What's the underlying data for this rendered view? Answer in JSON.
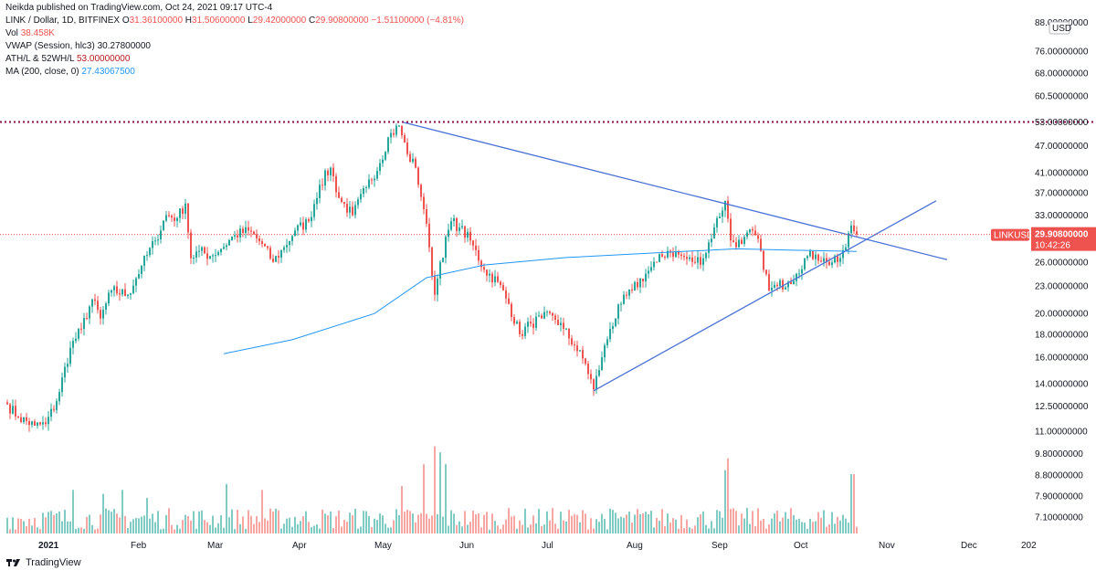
{
  "header": {
    "publisher_line": "Neikda published on TradingView.com, Oct 24, 2021 09:17 UTC-4"
  },
  "legend": {
    "symbol": "LINK / Dollar, 1D, BITFINEX",
    "ohlc": {
      "o_label": "O",
      "o": "31.36100000",
      "h_label": "H",
      "h": "31.50600000",
      "l_label": "L",
      "l": "29.42000000",
      "c_label": "C",
      "c": "29.90800000",
      "change": "−1.51100000 (−4.81%)"
    },
    "vol_label": "Vol",
    "vol": "38.458K",
    "vwap_label": "VWAP (Session, hlc3)",
    "vwap": "30.27800000",
    "ath_label": "ATH/L & 52WH/L",
    "ath": "53.00000000",
    "ma_label": "MA (200, close, 0)",
    "ma": "27.43067500"
  },
  "price_axis": {
    "currency": "USD",
    "ticks": [
      "88.00000000",
      "76.00000000",
      "68.00000000",
      "60.50000000",
      "53.00000000",
      "47.00000000",
      "41.00000000",
      "37.00000000",
      "33.00000000",
      "29.90800000",
      "26.00000000",
      "23.00000000",
      "20.00000000",
      "18.00000000",
      "16.00000000",
      "14.00000000",
      "12.50000000",
      "11.00000000",
      "9.80000000",
      "8.80000000",
      "7.90000000",
      "7.10000000"
    ],
    "last_price_label": "29.90800000",
    "countdown": "10:42:26",
    "symbol_badge": "LINKUSD",
    "ath_line_price": "53.00000000"
  },
  "time_axis": {
    "labels": [
      "2021",
      "Feb",
      "Mar",
      "Apr",
      "May",
      "Jun",
      "Jul",
      "Aug",
      "Sep",
      "Oct",
      "Nov",
      "Dec",
      "202"
    ]
  },
  "footer": {
    "brand": "TradingView"
  },
  "colors": {
    "up": "#26a69a",
    "down": "#ef5350",
    "vol_up": "#80cbc4",
    "vol_down": "#f7a6a4",
    "ma": "#2196f3",
    "trendline": "#4a72d6",
    "ath_line": "#880e4f",
    "last_price_bg": "#ef5350",
    "badge_bg": "#ef5350"
  },
  "chart_data": {
    "type": "candlestick",
    "title": "LINK / Dollar, 1D, BITFINEX",
    "ylabel": "USD",
    "log_scale": true,
    "ylim": [
      6.5,
      95
    ],
    "x_start": "2020-12-18",
    "x_end": "2021-10-24",
    "close_anchors": [
      [
        "2020-12-18",
        12.6
      ],
      [
        "2020-12-22",
        11.8
      ],
      [
        "2020-12-28",
        11.3
      ],
      [
        "2021-01-01",
        11.4
      ],
      [
        "2021-01-05",
        12.8
      ],
      [
        "2021-01-10",
        16.8
      ],
      [
        "2021-01-14",
        18.5
      ],
      [
        "2021-01-18",
        21.5
      ],
      [
        "2021-01-21",
        19.5
      ],
      [
        "2021-01-25",
        22.5
      ],
      [
        "2021-01-31",
        22.0
      ],
      [
        "2021-02-05",
        25.5
      ],
      [
        "2021-02-10",
        29.0
      ],
      [
        "2021-02-14",
        33.0
      ],
      [
        "2021-02-18",
        32.5
      ],
      [
        "2021-02-21",
        35.0
      ],
      [
        "2021-02-23",
        26.5
      ],
      [
        "2021-02-26",
        27.5
      ],
      [
        "2021-03-02",
        26.8
      ],
      [
        "2021-03-06",
        27.8
      ],
      [
        "2021-03-11",
        29.8
      ],
      [
        "2021-03-16",
        30.5
      ],
      [
        "2021-03-21",
        28.5
      ],
      [
        "2021-03-25",
        26.0
      ],
      [
        "2021-03-29",
        28.0
      ],
      [
        "2021-04-02",
        30.5
      ],
      [
        "2021-04-07",
        32.0
      ],
      [
        "2021-04-11",
        38.5
      ],
      [
        "2021-04-15",
        42.0
      ],
      [
        "2021-04-18",
        36.0
      ],
      [
        "2021-04-23",
        33.0
      ],
      [
        "2021-04-28",
        38.0
      ],
      [
        "2021-05-03",
        43.0
      ],
      [
        "2021-05-06",
        49.0
      ],
      [
        "2021-05-10",
        52.0
      ],
      [
        "2021-05-13",
        45.0
      ],
      [
        "2021-05-16",
        42.0
      ],
      [
        "2021-05-19",
        34.0
      ],
      [
        "2021-05-21",
        28.0
      ],
      [
        "2021-05-23",
        22.0
      ],
      [
        "2021-05-25",
        26.0
      ],
      [
        "2021-05-29",
        32.0
      ],
      [
        "2021-06-01",
        31.0
      ],
      [
        "2021-06-05",
        29.0
      ],
      [
        "2021-06-10",
        25.0
      ],
      [
        "2021-06-15",
        23.5
      ],
      [
        "2021-06-19",
        21.0
      ],
      [
        "2021-06-23",
        18.0
      ],
      [
        "2021-06-27",
        19.0
      ],
      [
        "2021-07-01",
        19.5
      ],
      [
        "2021-07-05",
        19.8
      ],
      [
        "2021-07-09",
        18.5
      ],
      [
        "2021-07-13",
        17.0
      ],
      [
        "2021-07-17",
        15.5
      ],
      [
        "2021-07-20",
        13.6
      ],
      [
        "2021-07-23",
        16.0
      ],
      [
        "2021-07-26",
        18.5
      ],
      [
        "2021-07-30",
        21.0
      ],
      [
        "2021-08-03",
        22.5
      ],
      [
        "2021-08-08",
        24.5
      ],
      [
        "2021-08-12",
        26.0
      ],
      [
        "2021-08-16",
        27.5
      ],
      [
        "2021-08-20",
        27.0
      ],
      [
        "2021-08-25",
        26.0
      ],
      [
        "2021-08-29",
        26.5
      ],
      [
        "2021-09-02",
        31.0
      ],
      [
        "2021-09-06",
        35.5
      ],
      [
        "2021-09-08",
        29.0
      ],
      [
        "2021-09-12",
        28.5
      ],
      [
        "2021-09-16",
        30.5
      ],
      [
        "2021-09-19",
        27.5
      ],
      [
        "2021-09-22",
        22.5
      ],
      [
        "2021-09-25",
        23.0
      ],
      [
        "2021-09-29",
        23.5
      ],
      [
        "2021-10-02",
        24.5
      ],
      [
        "2021-10-05",
        26.5
      ],
      [
        "2021-10-09",
        27.0
      ],
      [
        "2021-10-13",
        26.0
      ],
      [
        "2021-10-17",
        26.0
      ],
      [
        "2021-10-20",
        28.0
      ],
      [
        "2021-10-22",
        31.3
      ],
      [
        "2021-10-24",
        29.908
      ]
    ],
    "ma200": [
      [
        "2021-03-07",
        16.3
      ],
      [
        "2021-04-01",
        17.5
      ],
      [
        "2021-05-01",
        20.0
      ],
      [
        "2021-05-20",
        24.0
      ],
      [
        "2021-06-10",
        25.6
      ],
      [
        "2021-07-10",
        26.6
      ],
      [
        "2021-08-20",
        27.4
      ],
      [
        "2021-09-10",
        27.8
      ],
      [
        "2021-10-01",
        27.6
      ],
      [
        "2021-10-24",
        27.43
      ]
    ],
    "trendlines": [
      {
        "name": "resistance",
        "points": [
          [
            "2021-05-11",
            53.0
          ],
          [
            "2021-11-26",
            26.3
          ]
        ]
      },
      {
        "name": "support",
        "points": [
          [
            "2021-07-20",
            13.5
          ],
          [
            "2021-11-22",
            35.5
          ]
        ]
      }
    ],
    "ath_level": 53.0,
    "last_close": 29.908,
    "volume_ylim": [
      0,
      60
    ],
    "volume_highlights": [
      [
        "2021-01-11",
        22
      ],
      [
        "2021-01-22",
        20
      ],
      [
        "2021-01-29",
        22
      ],
      [
        "2021-02-07",
        18
      ],
      [
        "2021-03-08",
        25
      ],
      [
        "2021-03-21",
        22
      ],
      [
        "2021-05-11",
        24
      ],
      [
        "2021-05-19",
        35
      ],
      [
        "2021-05-23",
        44
      ],
      [
        "2021-05-25",
        41
      ],
      [
        "2021-05-27",
        35
      ],
      [
        "2021-09-06",
        32
      ],
      [
        "2021-09-07",
        38
      ],
      [
        "2021-10-22",
        30
      ],
      [
        "2021-10-23",
        30
      ]
    ]
  }
}
